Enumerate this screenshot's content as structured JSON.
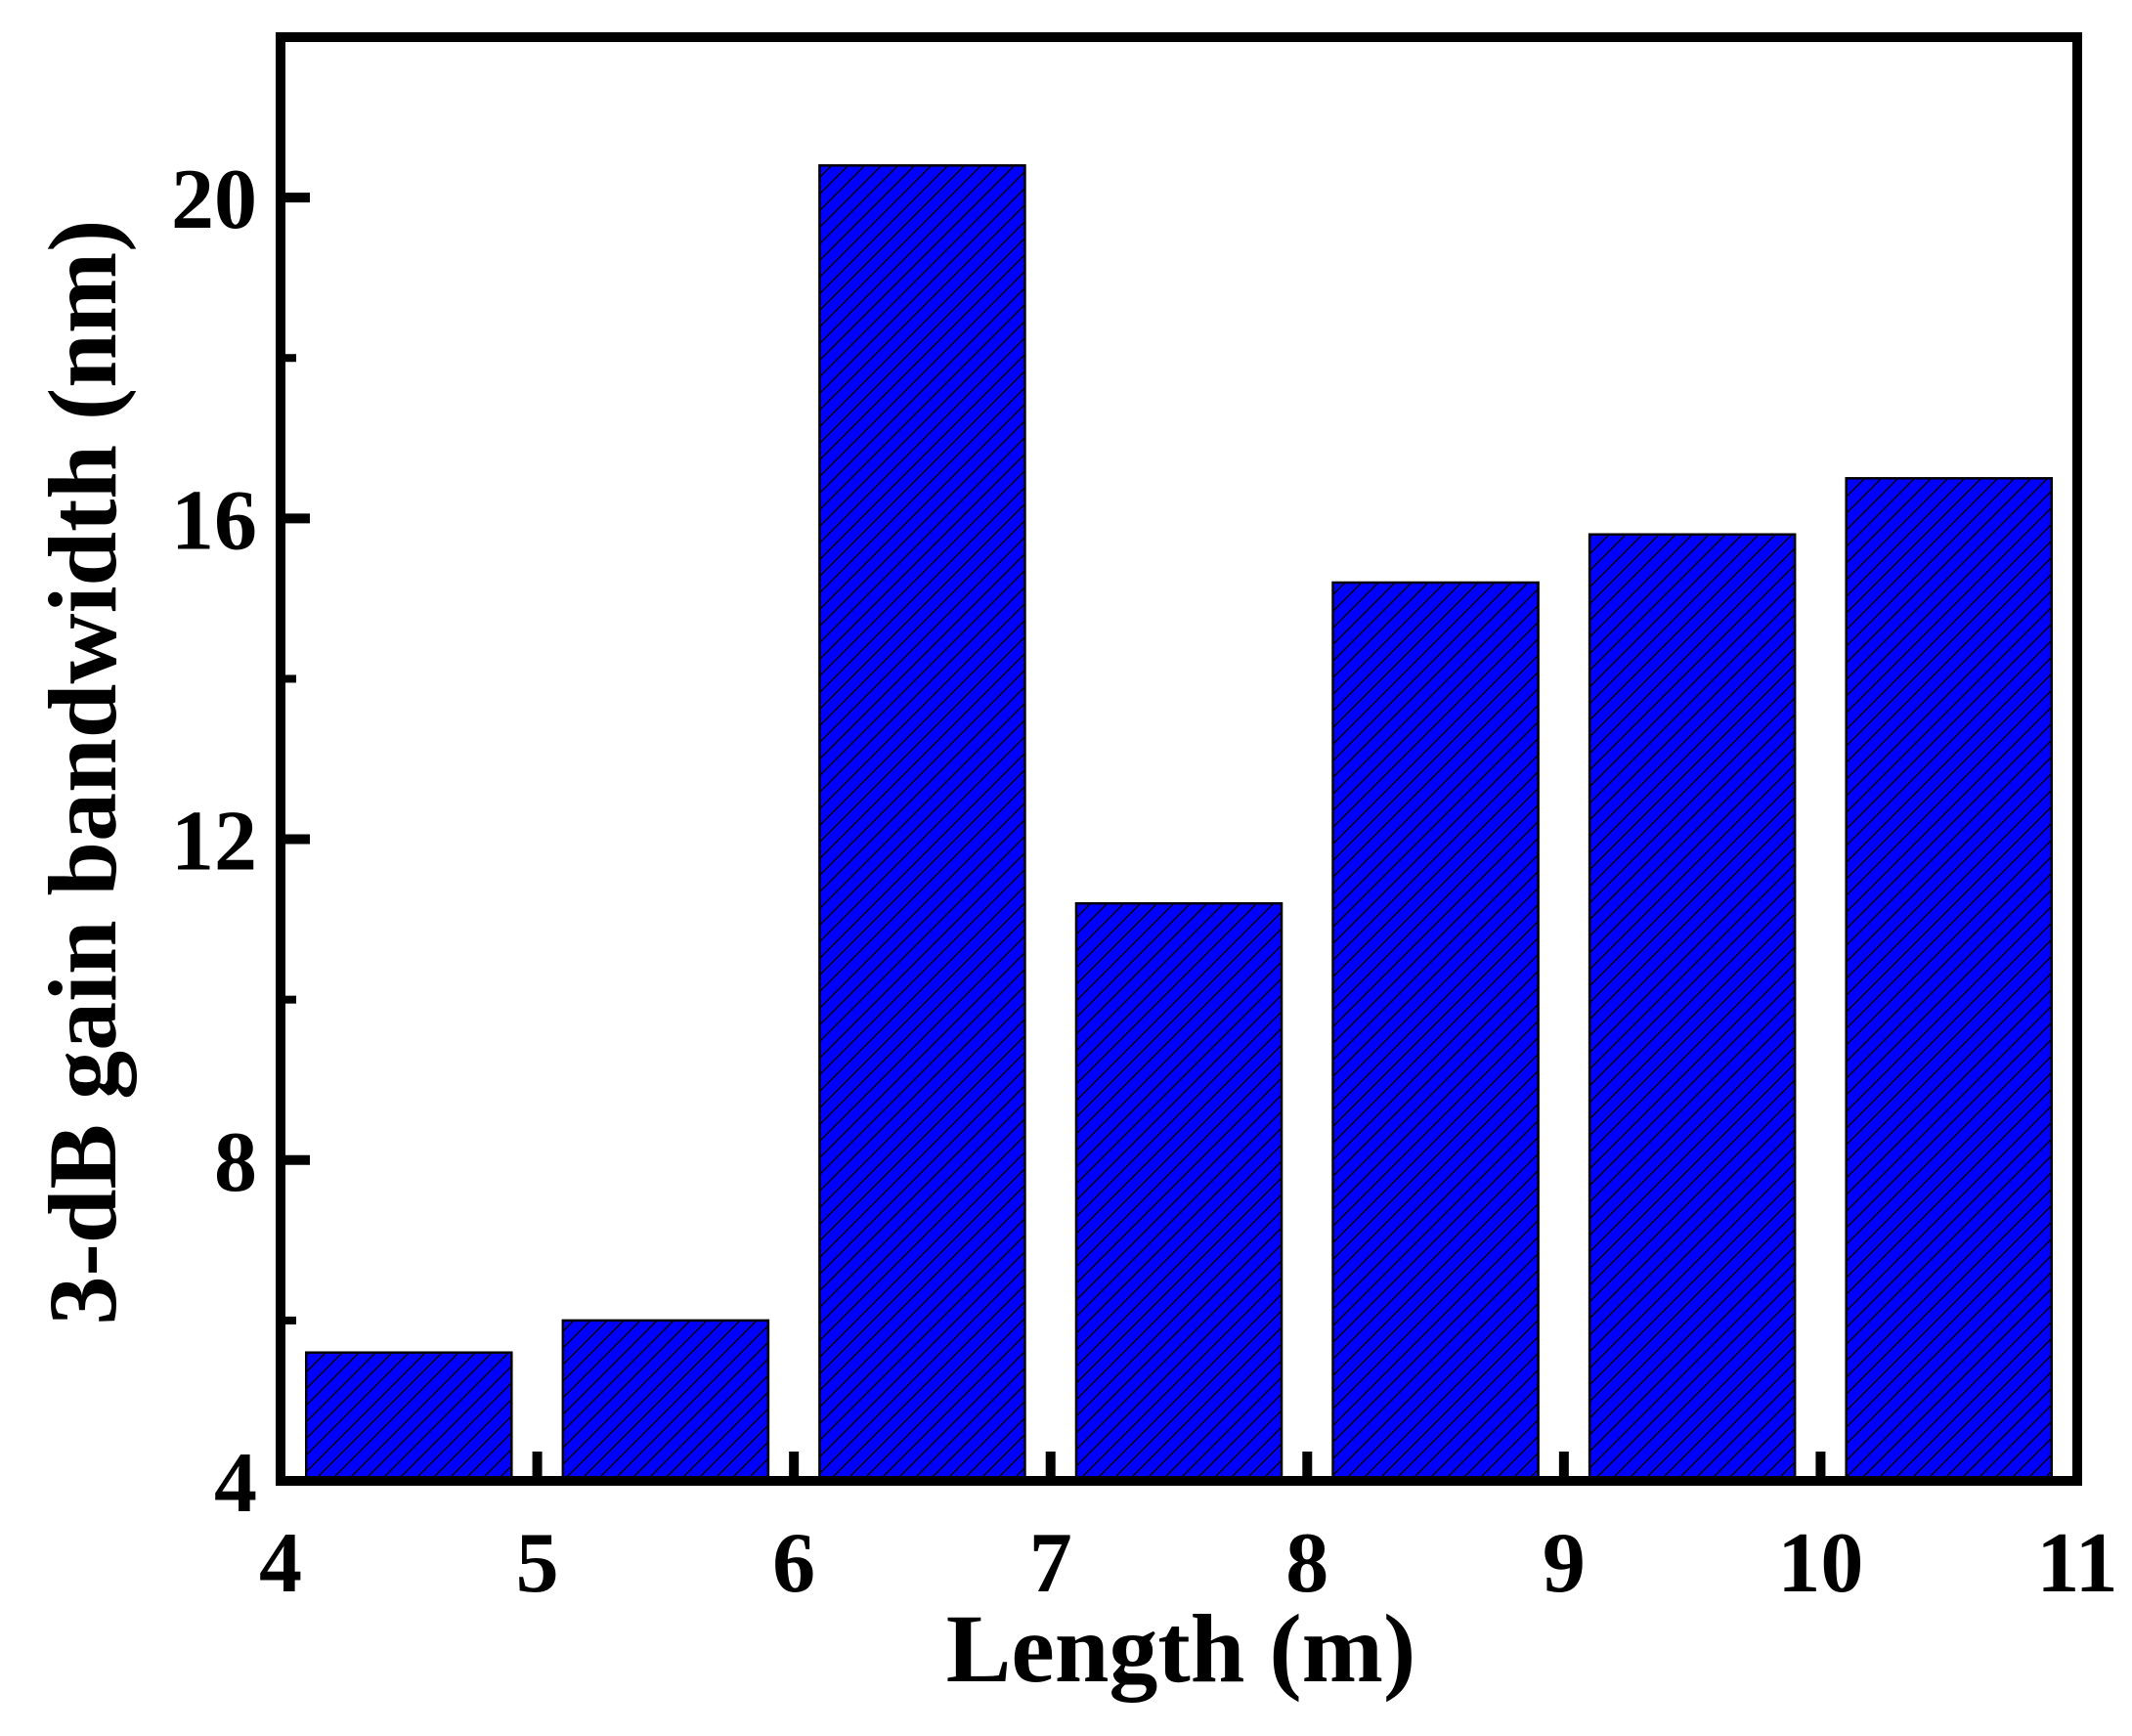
{
  "chart_data": {
    "type": "bar",
    "x": [
      4.5,
      5.5,
      6.5,
      7.5,
      8.5,
      9.5,
      10.5
    ],
    "values": [
      5.6,
      6.0,
      20.4,
      11.2,
      15.2,
      15.8,
      16.5
    ],
    "xlabel": "Length (m)",
    "ylabel": "3-dB gain bandwidth (nm)",
    "xlim": [
      4,
      11
    ],
    "ylim": [
      4,
      22
    ],
    "xticks": [
      4,
      5,
      6,
      7,
      8,
      9,
      10,
      11
    ],
    "yticks": [
      4,
      8,
      12,
      16,
      20
    ],
    "bar_width": 0.8,
    "bar_color": "#0000FF",
    "bar_edge_color": "#000000",
    "bar_pattern": "diagonal-hatch",
    "grid": false,
    "legend": "none"
  }
}
